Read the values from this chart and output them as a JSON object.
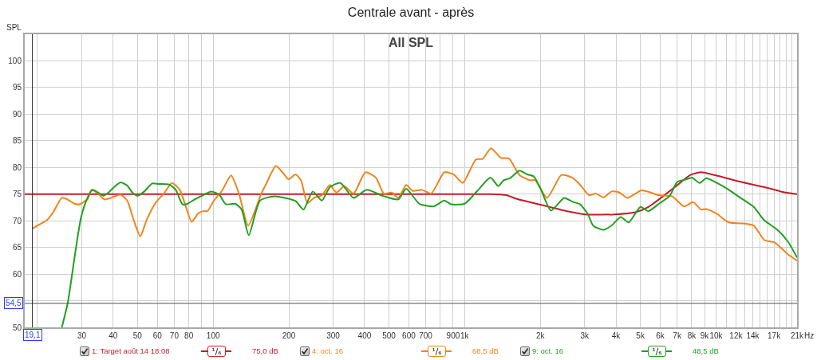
{
  "chart_data": {
    "type": "line",
    "title": "Centrale avant - après",
    "subtitle": "All SPL",
    "ylabel": "SPL",
    "xlabel": "Hz",
    "annotations": [
      "¹/₆",
      "75,0 dB",
      "¹/₆",
      "68,5 dB",
      "¹/₆",
      "48,5 dB"
    ],
    "log": "x",
    "grid": true,
    "legend": "bottom",
    "xlim": [
      17.8,
      21000
    ],
    "xticks": [
      {
        "value": 20,
        "label": null
      },
      30,
      40,
      50,
      60,
      70,
      80,
      {
        "value": 90,
        "label": null
      },
      100,
      200,
      300,
      400,
      500,
      600,
      700,
      {
        "value": 800,
        "label": null
      },
      900,
      {
        "value": 1000,
        "label": "1k"
      },
      {
        "value": 2000,
        "label": "2k"
      },
      {
        "value": 3000,
        "label": "3k"
      },
      {
        "value": 4000,
        "label": "4k"
      },
      {
        "value": 5000,
        "label": "5k"
      },
      {
        "value": 6000,
        "label": "6k"
      },
      {
        "value": 7000,
        "label": "7k"
      },
      {
        "value": 8000,
        "label": "8k"
      },
      {
        "value": 9000,
        "label": "9k"
      },
      {
        "value": 10000,
        "label": "10k"
      },
      {
        "value": 11000,
        "label": null
      },
      {
        "value": 12000,
        "label": "12k"
      },
      {
        "value": 13000,
        "label": null
      },
      {
        "value": 14000,
        "label": "14k"
      },
      {
        "value": 15000,
        "label": null
      },
      {
        "value": 16000,
        "label": null
      },
      {
        "value": 17000,
        "label": "17k"
      },
      {
        "value": 18000,
        "label": null
      },
      {
        "value": 19000,
        "label": null
      },
      {
        "value": 20000,
        "label": null
      },
      {
        "value": 21000,
        "label": "21k"
      }
    ],
    "ylim": [
      50,
      105
    ],
    "yticks": [
      50,
      {
        "value": 55,
        "label": null
      },
      60,
      65,
      70,
      75,
      80,
      85,
      90,
      95,
      100
    ],
    "ref_lines": [
      {
        "axis": "y",
        "value": 54.5,
        "label": "54,5",
        "color": "#505050"
      },
      {
        "axis": "x",
        "value": 19.1,
        "label": "19,1",
        "color": "#202020"
      }
    ],
    "series": [
      {
        "name": "1: Target août 14 18:08",
        "color": "#c41e28",
        "x": [
          17.8,
          1000,
          1267,
          1464,
          1612,
          2051,
          2611,
          3017,
          3933,
          4771,
          5382,
          6848,
          7913,
          8714,
          10000,
          12512,
          15923,
          18853,
          21000
        ],
        "values": [
          75.0,
          75.0,
          75.0,
          74.8,
          74.1,
          72.9,
          71.7,
          71.2,
          71.2,
          71.6,
          72.6,
          76.3,
          78.6,
          79.1,
          78.5,
          77.3,
          76.2,
          75.3,
          75.0
        ]
      },
      {
        "name": "4: oct. 16",
        "color": "#f0841a",
        "x": [
          19.1,
          20.0,
          21.8,
          23.1,
          25.0,
          26.1,
          28.1,
          29.4,
          31.7,
          32.8,
          34.8,
          37.0,
          40.3,
          42.8,
          45.5,
          48.3,
          51.3,
          54.5,
          59.3,
          63.7,
          68.5,
          73.6,
          77.3,
          82.1,
          87.2,
          91.5,
          94.8,
          100.7,
          108.3,
          117.8,
          126.6,
          137.8,
          155.4,
          163.1,
          177.5,
          188.6,
          199.3,
          212.7,
          223.3,
          237.1,
          251.8,
          270.6,
          291.0,
          309.1,
          332.2,
          361.5,
          403.0,
          443.7,
          477.0,
          512.8,
          544.6,
          585.5,
          621.8,
          676.8,
          736.3,
          830.6,
          903.7,
          983.3,
          1109,
          1178,
          1273,
          1395,
          1500,
          1652,
          1818,
          1908,
          2127,
          2428,
          2675,
          2874,
          3128,
          3322,
          3572,
          3840,
          4128,
          4437,
          5067,
          5926,
          6684,
          7455,
          8108,
          8714,
          9146,
          10073,
          11229,
          12823,
          14117,
          15545,
          17122,
          19311,
          21000
        ],
        "values": [
          68.5,
          69.1,
          70.1,
          71.6,
          74.3,
          74.1,
          73.2,
          73.1,
          74.1,
          75.8,
          75.1,
          74.0,
          74.5,
          74.9,
          73.8,
          70.1,
          67.1,
          70.3,
          73.5,
          75.1,
          77.1,
          75.8,
          73.1,
          69.8,
          71.4,
          71.8,
          71.8,
          73.8,
          75.6,
          78.5,
          75.1,
          69.1,
          75.1,
          77.1,
          80.3,
          79.1,
          77.8,
          78.7,
          77.6,
          73.3,
          74.3,
          74.8,
          76.7,
          75.3,
          76.5,
          75.1,
          79.1,
          78.1,
          75.1,
          75.3,
          74.3,
          76.7,
          75.6,
          75.8,
          75.1,
          79.1,
          78.7,
          77.1,
          81.5,
          81.6,
          83.6,
          81.8,
          81.7,
          78.6,
          77.6,
          77.6,
          74.3,
          78.6,
          78.1,
          76.8,
          74.8,
          75.1,
          74.4,
          75.5,
          75.3,
          74.3,
          75.7,
          74.8,
          74.6,
          72.7,
          73.5,
          72.1,
          72.2,
          71.3,
          69.7,
          69.5,
          69.1,
          66.4,
          65.9,
          63.7,
          62.5
        ]
      },
      {
        "name": "9: oct. 16",
        "color": "#20a020",
        "x": [
          25.0,
          26.4,
          27.4,
          28.7,
          29.8,
          30.9,
          32.4,
          33.2,
          34.8,
          36.6,
          37.9,
          40.3,
          42.8,
          45.5,
          47.7,
          50.1,
          53.2,
          57.2,
          60.7,
          66.8,
          71.0,
          75.4,
          78.2,
          85.1,
          90.4,
          98.3,
          105.7,
          112.3,
          122.2,
          129.8,
          138.5,
          153.6,
          175.4,
          193.2,
          212.7,
          228.7,
          248.8,
          270.6,
          291.0,
          320.5,
          361.5,
          407.9,
          477.0,
          544.6,
          585.5,
          660.6,
          754.3,
          830.6,
          882.2,
          1000,
          1123,
          1267,
          1362,
          1429,
          1518,
          1652,
          1775,
          1886,
          2002,
          2206,
          2488,
          2675,
          2874,
          3091,
          3244,
          3572,
          3840,
          4178,
          4492,
          5006,
          5382,
          5926,
          6527,
          7016,
          7543,
          8010,
          8611,
          9146,
          10073,
          11093,
          12512,
          14117,
          15545,
          17539,
          19311,
          21000
        ],
        "values": [
          50.0,
          54.6,
          59.6,
          66.1,
          70.6,
          73.1,
          75.3,
          75.8,
          75.3,
          74.7,
          75.1,
          76.3,
          77.2,
          76.6,
          75.3,
          74.7,
          75.5,
          77.0,
          76.9,
          76.8,
          75.8,
          73.1,
          73.1,
          74.1,
          74.7,
          75.5,
          74.9,
          73.1,
          73.2,
          72.1,
          67.3,
          73.8,
          74.6,
          74.3,
          73.7,
          72.1,
          75.5,
          73.8,
          76.3,
          77.1,
          74.3,
          75.8,
          74.6,
          74.0,
          76.0,
          73.2,
          72.7,
          73.8,
          73.1,
          73.2,
          75.6,
          78.1,
          76.5,
          77.6,
          78.0,
          79.4,
          78.7,
          78.3,
          76.1,
          71.9,
          74.3,
          73.6,
          73.1,
          71.3,
          69.1,
          68.3,
          69.1,
          70.7,
          69.7,
          72.6,
          71.8,
          73.2,
          74.6,
          77.3,
          77.7,
          78.1,
          77.1,
          78.0,
          77.1,
          76.0,
          74.3,
          72.6,
          70.1,
          68.3,
          66.1,
          63.1
        ]
      }
    ]
  }
}
